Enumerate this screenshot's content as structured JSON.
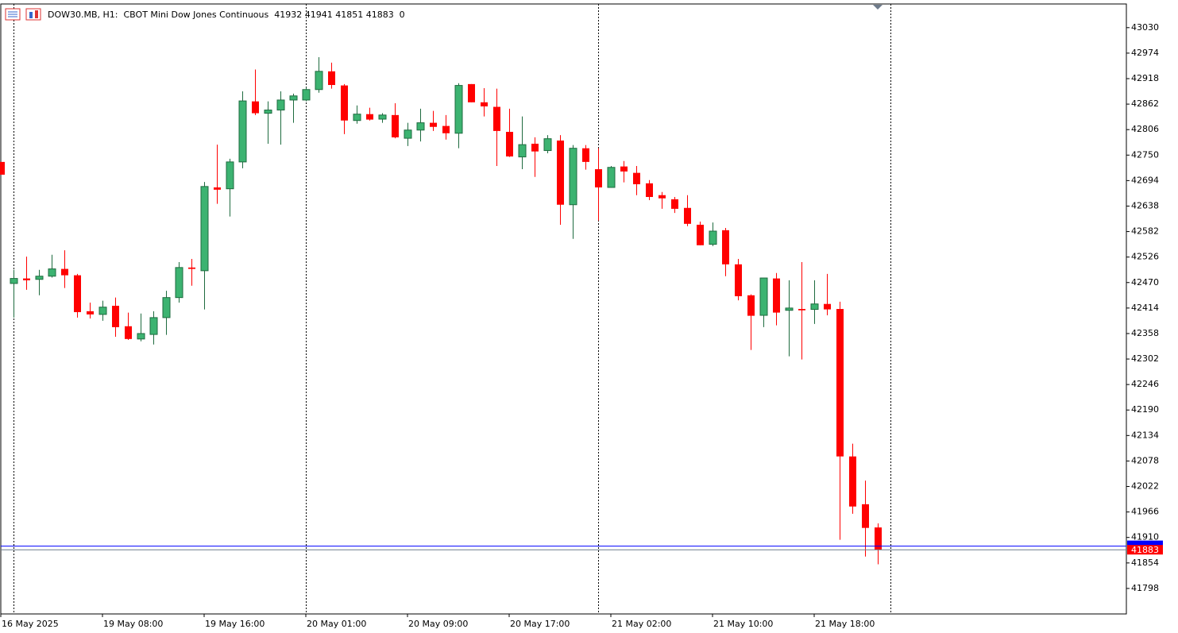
{
  "chart_data": {
    "type": "candlestick",
    "title": "DOW30.MB, H1:  CBOT Mini Dow Jones Continuous  41932 41941 41851 41883  0",
    "categories": [
      "16 May 2025",
      null,
      null,
      null,
      null,
      null,
      null,
      null,
      "19 May 08:00",
      null,
      null,
      null,
      null,
      null,
      null,
      null,
      "19 May 16:00",
      null,
      null,
      null,
      null,
      null,
      null,
      null,
      "20 May 01:00",
      null,
      null,
      null,
      null,
      null,
      null,
      null,
      "20 May 09:00",
      null,
      null,
      null,
      null,
      null,
      null,
      null,
      "20 May 17:00",
      null,
      null,
      null,
      null,
      null,
      null,
      null,
      "21 May 02:00",
      null,
      null,
      null,
      null,
      null,
      null,
      null,
      "21 May 10:00",
      null,
      null,
      null,
      null,
      null,
      null,
      null,
      "21 May 18:00",
      null,
      null,
      null,
      null,
      null
    ],
    "open": [
      42735,
      42468,
      42479,
      42477,
      42484,
      42500,
      42486,
      42407,
      42400,
      42419,
      42374,
      42346,
      42356,
      42393,
      42437,
      42503,
      42496,
      42679,
      42676,
      42735,
      42868,
      42842,
      42849,
      42871,
      42871,
      42894,
      42934,
      42903,
      42826,
      42840,
      42829,
      42838,
      42787,
      42805,
      42821,
      42814,
      42798,
      42906,
      42866,
      42856,
      42801,
      42746,
      42775,
      42760,
      42782,
      42641,
      42765,
      42719,
      42679,
      42725,
      42711,
      42688,
      42662,
      42653,
      42634,
      42597,
      42554,
      42585,
      42510,
      42442,
      42398,
      42479,
      42409,
      42412,
      42411,
      42423,
      42412,
      42088,
      41983,
      41932
    ],
    "high": [
      42735,
      42498,
      42527,
      42498,
      42531,
      42541,
      42489,
      42426,
      42430,
      42437,
      42404,
      42402,
      42407,
      42452,
      42515,
      42522,
      42691,
      42773,
      42742,
      42890,
      42938,
      42868,
      42890,
      42885,
      42899,
      42965,
      42953,
      42906,
      42859,
      42854,
      42842,
      42864,
      42821,
      42852,
      42847,
      42838,
      42908,
      42906,
      42897,
      42896,
      42852,
      42835,
      42789,
      42794,
      42794,
      42772,
      42772,
      42765,
      42726,
      42737,
      42726,
      42695,
      42669,
      42658,
      42662,
      42604,
      42602,
      42590,
      42522,
      42444,
      42480,
      42491,
      42475,
      42515,
      42475,
      42489,
      42428,
      42116,
      42035,
      41941
    ],
    "low": [
      42707,
      42393,
      42454,
      42442,
      42481,
      42458,
      42393,
      42391,
      42386,
      42351,
      42344,
      42341,
      42334,
      42355,
      42426,
      42463,
      42411,
      42643,
      42615,
      42721,
      42838,
      42775,
      42773,
      42821,
      42868,
      42887,
      42896,
      42796,
      42819,
      42826,
      42821,
      42787,
      42770,
      42780,
      42803,
      42784,
      42765,
      42866,
      42835,
      42726,
      42746,
      42719,
      42702,
      42754,
      42597,
      42566,
      42718,
      42606,
      42678,
      42690,
      42662,
      42651,
      42632,
      42623,
      42594,
      42552,
      42550,
      42484,
      42431,
      42322,
      42372,
      42376,
      42308,
      42301,
      42379,
      42398,
      41905,
      41962,
      41868,
      41851
    ],
    "close": [
      42707,
      42479,
      42475,
      42484,
      42500,
      42486,
      42405,
      42400,
      42416,
      42372,
      42346,
      42358,
      42393,
      42437,
      42503,
      42500,
      42681,
      42674,
      42735,
      42869,
      42842,
      42849,
      42871,
      42880,
      42894,
      42934,
      42904,
      42826,
      42840,
      42828,
      42838,
      42789,
      42805,
      42821,
      42812,
      42798,
      42903,
      42866,
      42857,
      42803,
      42747,
      42773,
      42758,
      42786,
      42641,
      42765,
      42735,
      42679,
      42723,
      42714,
      42686,
      42658,
      42655,
      42632,
      42599,
      42552,
      42583,
      42510,
      42440,
      42397,
      42480,
      42404,
      42414,
      42409,
      42423,
      42411,
      42088,
      41978,
      41931,
      41883
    ],
    "up_color": "#3cb371",
    "down_color": "#ff0000",
    "ask_line": 41891,
    "ask_color": "#0000ff",
    "ylim": [
      41742,
      43082
    ],
    "yticks": [
      41798,
      41854,
      41910,
      41966,
      42022,
      42078,
      42134,
      42190,
      42246,
      42302,
      42358,
      42414,
      42470,
      42526,
      42582,
      42638,
      42694,
      42750,
      42806,
      42862,
      42918,
      42974,
      43030
    ]
  }
}
